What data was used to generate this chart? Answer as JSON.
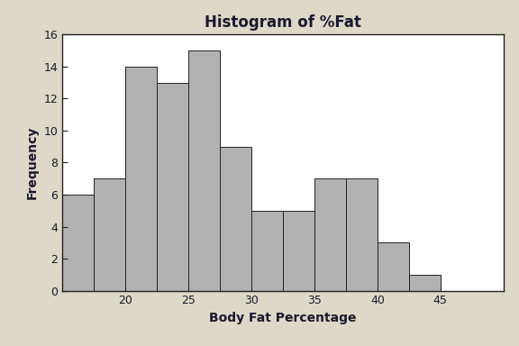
{
  "title": "Histogram of %Fat",
  "xlabel": "Body Fat Percentage",
  "ylabel": "Frequency",
  "bar_left_edges": [
    15,
    17.5,
    20,
    22.5,
    25,
    27.5,
    30,
    32.5,
    35,
    37.5,
    40,
    42.5,
    45
  ],
  "frequencies": [
    6,
    7,
    14,
    13,
    15,
    9,
    5,
    5,
    7,
    7,
    3,
    1
  ],
  "bin_width": 2.5,
  "bar_color": "#b2b2b2",
  "bar_edge_color": "#222222",
  "background_outer": "#ddd8c8",
  "background_plot": "#ffffff",
  "ylim": [
    0,
    16
  ],
  "yticks": [
    0,
    2,
    4,
    6,
    8,
    10,
    12,
    14,
    16
  ],
  "xticks": [
    20,
    25,
    30,
    35,
    40,
    45
  ],
  "xlim": [
    15,
    50
  ],
  "title_fontsize": 12,
  "label_fontsize": 10,
  "tick_fontsize": 9,
  "title_color": "#1a1a2e",
  "label_color": "#1a1a2e",
  "spine_color": "#222222",
  "bar_linewidth": 0.7
}
